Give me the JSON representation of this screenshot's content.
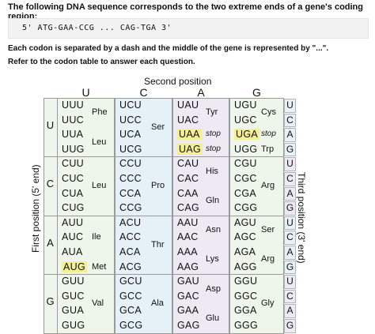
{
  "intro": "The following DNA sequence corresponds to the two extreme ends of a gene's coding region:",
  "sequence": "5' ATG-GAA-CCG ... CAG-TGA 3'",
  "note1": "Each codon is separated by a dash and the middle of the gene is represented by \"...\".",
  "note2": "Refer to the codon table to answer each question.",
  "second_title": "Second position",
  "first_label": "First position (5' end)",
  "third_label": "Third position (3' end)",
  "second_bases": [
    "U",
    "C",
    "A",
    "G"
  ],
  "first_bases": [
    "U",
    "C",
    "A",
    "G"
  ],
  "third_bases": [
    "U",
    "C",
    "A",
    "G",
    "U",
    "C",
    "A",
    "G",
    "U",
    "C",
    "A",
    "G",
    "U",
    "C",
    "A",
    "G"
  ],
  "colors": {
    "col_U": "#eef5ea",
    "col_C": "#e6f1f7",
    "col_A": "#eeeaf3",
    "col_G": "#eef5ea",
    "highlight": "#f4ee94"
  },
  "codons": [
    [
      "UUU",
      "UCU",
      "UAU",
      "UGU"
    ],
    [
      "UUC",
      "UCC",
      "UAC",
      "UGC"
    ],
    [
      "UUA",
      "UCA",
      "UAA",
      "UGA"
    ],
    [
      "UUG",
      "UCG",
      "UAG",
      "UGG"
    ],
    [
      "CUU",
      "CCU",
      "CAU",
      "CGU"
    ],
    [
      "CUC",
      "CCC",
      "CAC",
      "CGC"
    ],
    [
      "CUA",
      "CCA",
      "CAA",
      "CGA"
    ],
    [
      "CUG",
      "CCG",
      "CAG",
      "CGG"
    ],
    [
      "AUU",
      "ACU",
      "AAU",
      "AGU"
    ],
    [
      "AUC",
      "ACC",
      "AAC",
      "AGC"
    ],
    [
      "AUA",
      "ACA",
      "AAA",
      "AGA"
    ],
    [
      "AUG",
      "ACG",
      "AAG",
      "AGG"
    ],
    [
      "GUU",
      "GCU",
      "GAU",
      "GGU"
    ],
    [
      "GUC",
      "GCC",
      "GAC",
      "GGC"
    ],
    [
      "GUA",
      "GCA",
      "GAA",
      "GGA"
    ],
    [
      "GUG",
      "GCG",
      "GAG",
      "GGG"
    ]
  ],
  "amino_acids": [
    {
      "label": "Phe",
      "row": 0.5,
      "col": 0,
      "stop": false
    },
    {
      "label": "Leu",
      "row": 2.5,
      "col": 0,
      "stop": false
    },
    {
      "label": "Leu",
      "row": 5.5,
      "col": 0,
      "stop": false
    },
    {
      "label": "Ile",
      "row": 9,
      "col": 0,
      "stop": false
    },
    {
      "label": "Met",
      "row": 11,
      "col": 0,
      "stop": false
    },
    {
      "label": "Val",
      "row": 13.5,
      "col": 0,
      "stop": false
    },
    {
      "label": "Ser",
      "row": 1.5,
      "col": 1,
      "stop": false
    },
    {
      "label": "Pro",
      "row": 5.5,
      "col": 1,
      "stop": false
    },
    {
      "label": "Thr",
      "row": 9.5,
      "col": 1,
      "stop": false
    },
    {
      "label": "Ala",
      "row": 13.5,
      "col": 1,
      "stop": false
    },
    {
      "label": "Tyr",
      "row": 0.5,
      "col": 2,
      "stop": false
    },
    {
      "label": "stop",
      "row": 2,
      "col": 2,
      "stop": true
    },
    {
      "label": "stop",
      "row": 3,
      "col": 2,
      "stop": true
    },
    {
      "label": "His",
      "row": 4.5,
      "col": 2,
      "stop": false
    },
    {
      "label": "Gln",
      "row": 6.5,
      "col": 2,
      "stop": false
    },
    {
      "label": "Asn",
      "row": 8.5,
      "col": 2,
      "stop": false
    },
    {
      "label": "Lys",
      "row": 10.5,
      "col": 2,
      "stop": false
    },
    {
      "label": "Asp",
      "row": 12.5,
      "col": 2,
      "stop": false
    },
    {
      "label": "Glu",
      "row": 14.5,
      "col": 2,
      "stop": false
    },
    {
      "label": "Cys",
      "row": 0.5,
      "col": 3,
      "stop": false
    },
    {
      "label": "stop",
      "row": 2,
      "col": 3,
      "stop": true
    },
    {
      "label": "Trp",
      "row": 3,
      "col": 3,
      "stop": false
    },
    {
      "label": "Arg",
      "row": 5.5,
      "col": 3,
      "stop": false
    },
    {
      "label": "Ser",
      "row": 8.5,
      "col": 3,
      "stop": false
    },
    {
      "label": "Arg",
      "row": 10.5,
      "col": 3,
      "stop": false
    },
    {
      "label": "Gly",
      "row": 13.5,
      "col": 3,
      "stop": false
    }
  ],
  "highlighted_codons": [
    "UAA",
    "UAG",
    "UGA",
    "AUG"
  ]
}
